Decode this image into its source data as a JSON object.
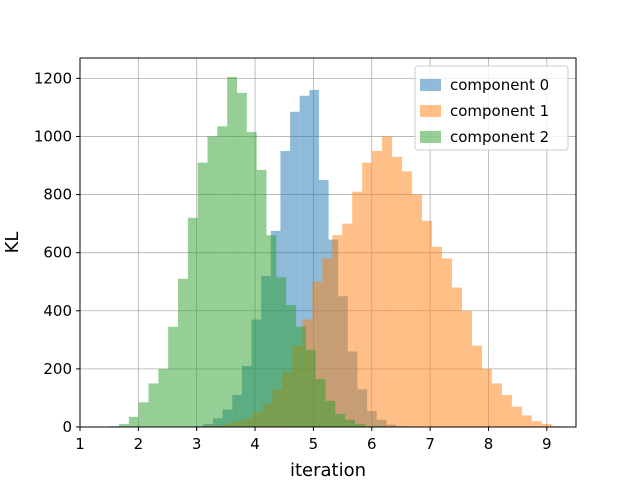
{
  "chart_data": {
    "type": "histogram",
    "title": "",
    "xlabel": "iteration",
    "ylabel": "KL",
    "xlim": [
      1,
      9.5
    ],
    "ylim": [
      0,
      1270
    ],
    "xticks": [
      1,
      2,
      3,
      4,
      5,
      6,
      7,
      8,
      9
    ],
    "yticks": [
      0,
      200,
      400,
      600,
      800,
      1000,
      1200
    ],
    "grid": true,
    "legend_position": "top-right",
    "series": [
      {
        "name": "component 0",
        "color": "#1f77b4",
        "opacity": 0.5,
        "bin_start": 2.95,
        "bin_width": 0.165,
        "counts": [
          3,
          10,
          30,
          60,
          110,
          210,
          370,
          520,
          675,
          950,
          1085,
          1140,
          1160,
          850,
          645,
          450,
          260,
          130,
          55,
          25,
          8,
          3
        ]
      },
      {
        "name": "component 1",
        "color": "#ff7f0e",
        "opacity": 0.5,
        "bin_start": 3.1,
        "bin_width": 0.171,
        "counts": [
          3,
          5,
          10,
          20,
          30,
          50,
          80,
          130,
          190,
          280,
          370,
          500,
          580,
          660,
          700,
          810,
          910,
          950,
          1000,
          930,
          880,
          800,
          710,
          620,
          580,
          480,
          400,
          280,
          200,
          150,
          110,
          70,
          40,
          20,
          10,
          3
        ]
      },
      {
        "name": "component 2",
        "color": "#2ca02c",
        "opacity": 0.5,
        "bin_start": 1.5,
        "bin_width": 0.1685,
        "counts": [
          3,
          10,
          35,
          85,
          150,
          200,
          345,
          510,
          720,
          910,
          1000,
          1035,
          1205,
          1150,
          1015,
          885,
          660,
          515,
          420,
          345,
          265,
          165,
          90,
          45,
          25,
          10,
          3,
          3
        ]
      }
    ]
  }
}
